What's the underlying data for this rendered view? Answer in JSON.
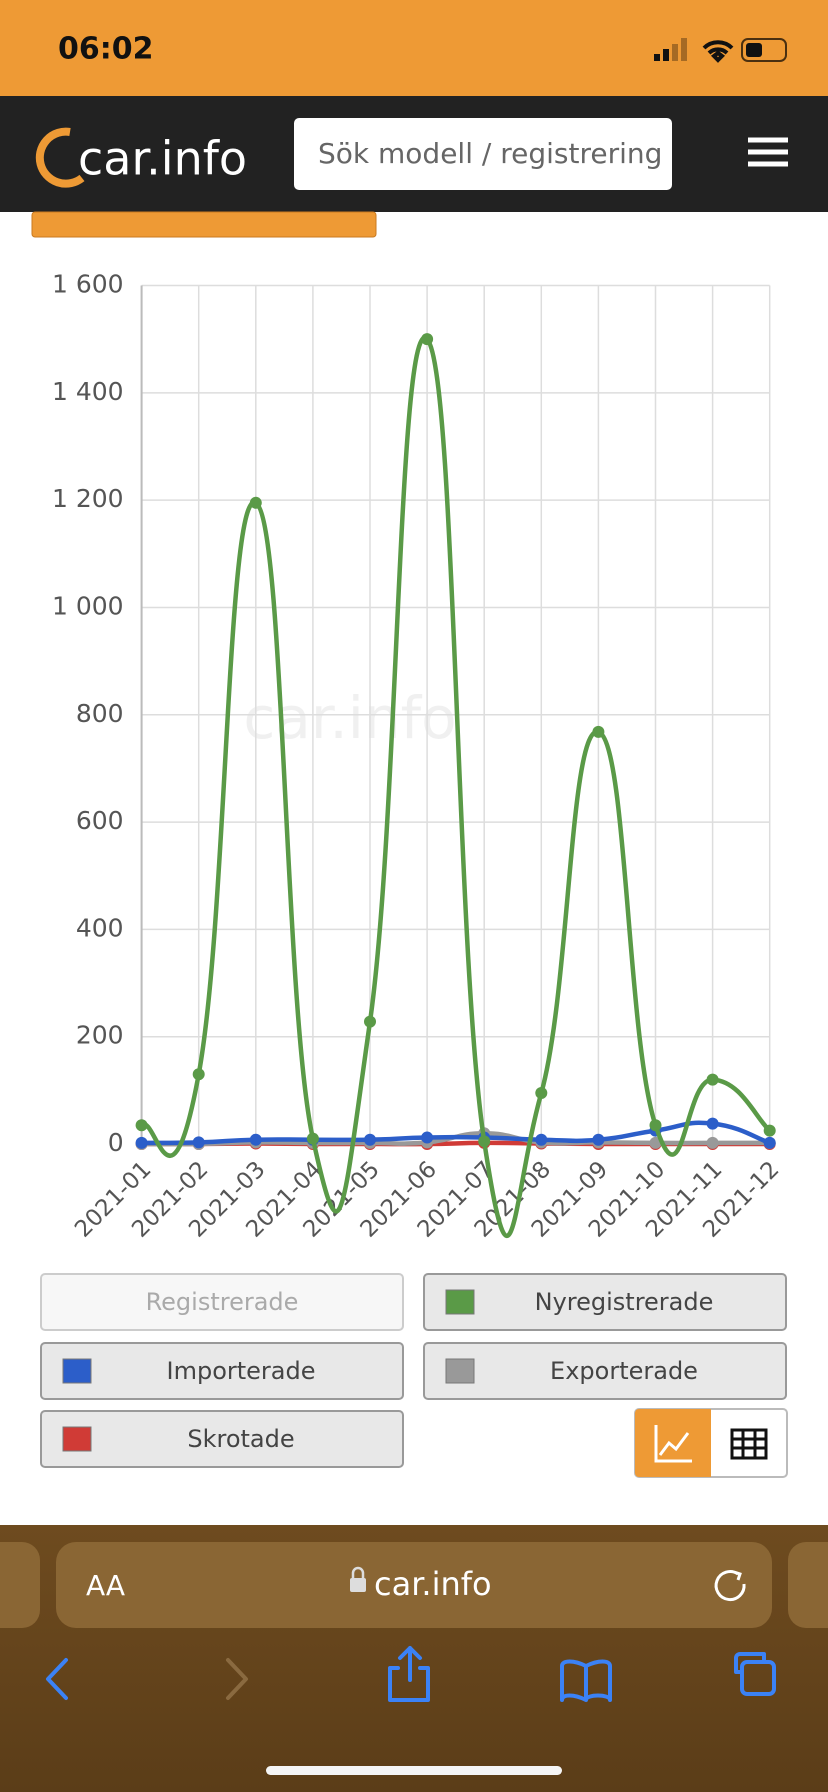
{
  "status_bar": {
    "time": "06:02"
  },
  "header": {
    "logo": "car.info",
    "search_placeholder": "Sök modell / registrering"
  },
  "chart_data": {
    "type": "line",
    "watermark": "car.info",
    "categories": [
      "2021-01",
      "2021-02",
      "2021-03",
      "2021-04",
      "2021-05",
      "2021-06",
      "2021-07",
      "2021-08",
      "2021-09",
      "2021-10",
      "2021-11",
      "2021-12"
    ],
    "series": [
      {
        "name": "Nyregistrerade",
        "color": "#5a9a47",
        "values": [
          35,
          130,
          1195,
          10,
          228,
          1500,
          5,
          95,
          768,
          35,
          120,
          25
        ]
      },
      {
        "name": "Importerade",
        "color": "#2c5ec9",
        "values": [
          2,
          3,
          8,
          8,
          8,
          12,
          12,
          8,
          8,
          25,
          38,
          2
        ]
      },
      {
        "name": "Exporterade",
        "color": "#999999",
        "values": [
          0,
          0,
          3,
          2,
          2,
          3,
          20,
          3,
          3,
          2,
          2,
          2
        ]
      },
      {
        "name": "Skrotade",
        "color": "#d03b36",
        "values": [
          0,
          0,
          1,
          0,
          0,
          0,
          2,
          1,
          0,
          0,
          0,
          0
        ]
      }
    ],
    "legend_disabled": "Registrerade",
    "ylim": [
      0,
      1600
    ],
    "yticks": [
      0,
      200,
      400,
      600,
      800,
      {
        "value": 1000,
        "label": "1 000"
      },
      {
        "value": 1200,
        "label": "1 200"
      },
      {
        "value": 1400,
        "label": "1 400"
      },
      {
        "value": 1600,
        "label": "1 600"
      }
    ],
    "grid": true
  },
  "browser": {
    "text_size": "AA",
    "url": "car.info"
  }
}
